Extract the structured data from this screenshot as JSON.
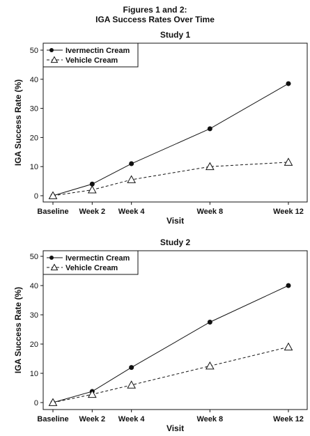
{
  "figure": {
    "title_line1": "Figures 1 and 2:",
    "title_line2": "IGA Success Rates Over Time"
  },
  "chart_data": [
    {
      "type": "line",
      "title": "Study 1",
      "xlabel": "Visit",
      "ylabel": "IGA Success Rate (%)",
      "categories": [
        "Baseline",
        "Week 2",
        "Week 4",
        "Week 8",
        "Week 12"
      ],
      "x": [
        0,
        2,
        4,
        8,
        12
      ],
      "ylim": [
        0,
        50
      ],
      "yticks": [
        0,
        10,
        20,
        30,
        40,
        50
      ],
      "legend_position": "top-left",
      "series": [
        {
          "name": "Ivermectin Cream",
          "marker": "filled-circle",
          "line": "solid",
          "color": "#111111",
          "values": [
            0,
            4,
            11,
            23,
            38.5
          ]
        },
        {
          "name": "Vehicle Cream",
          "marker": "open-triangle",
          "line": "dashed",
          "color": "#111111",
          "values": [
            0,
            2,
            5.5,
            10,
            11.5
          ]
        }
      ]
    },
    {
      "type": "line",
      "title": "Study 2",
      "xlabel": "Visit",
      "ylabel": "IGA Success Rate (%)",
      "categories": [
        "Baseline",
        "Week 2",
        "Week 4",
        "Week 8",
        "Week 12"
      ],
      "x": [
        0,
        2,
        4,
        8,
        12
      ],
      "ylim": [
        0,
        50
      ],
      "yticks": [
        0,
        10,
        20,
        30,
        40,
        50
      ],
      "legend_position": "top-left",
      "series": [
        {
          "name": "Ivermectin Cream",
          "marker": "filled-circle",
          "line": "solid",
          "color": "#111111",
          "values": [
            0,
            3.8,
            12,
            27.5,
            40
          ]
        },
        {
          "name": "Vehicle Cream",
          "marker": "open-triangle",
          "line": "dashed",
          "color": "#111111",
          "values": [
            0,
            2.8,
            6,
            12.5,
            19
          ]
        }
      ]
    }
  ]
}
